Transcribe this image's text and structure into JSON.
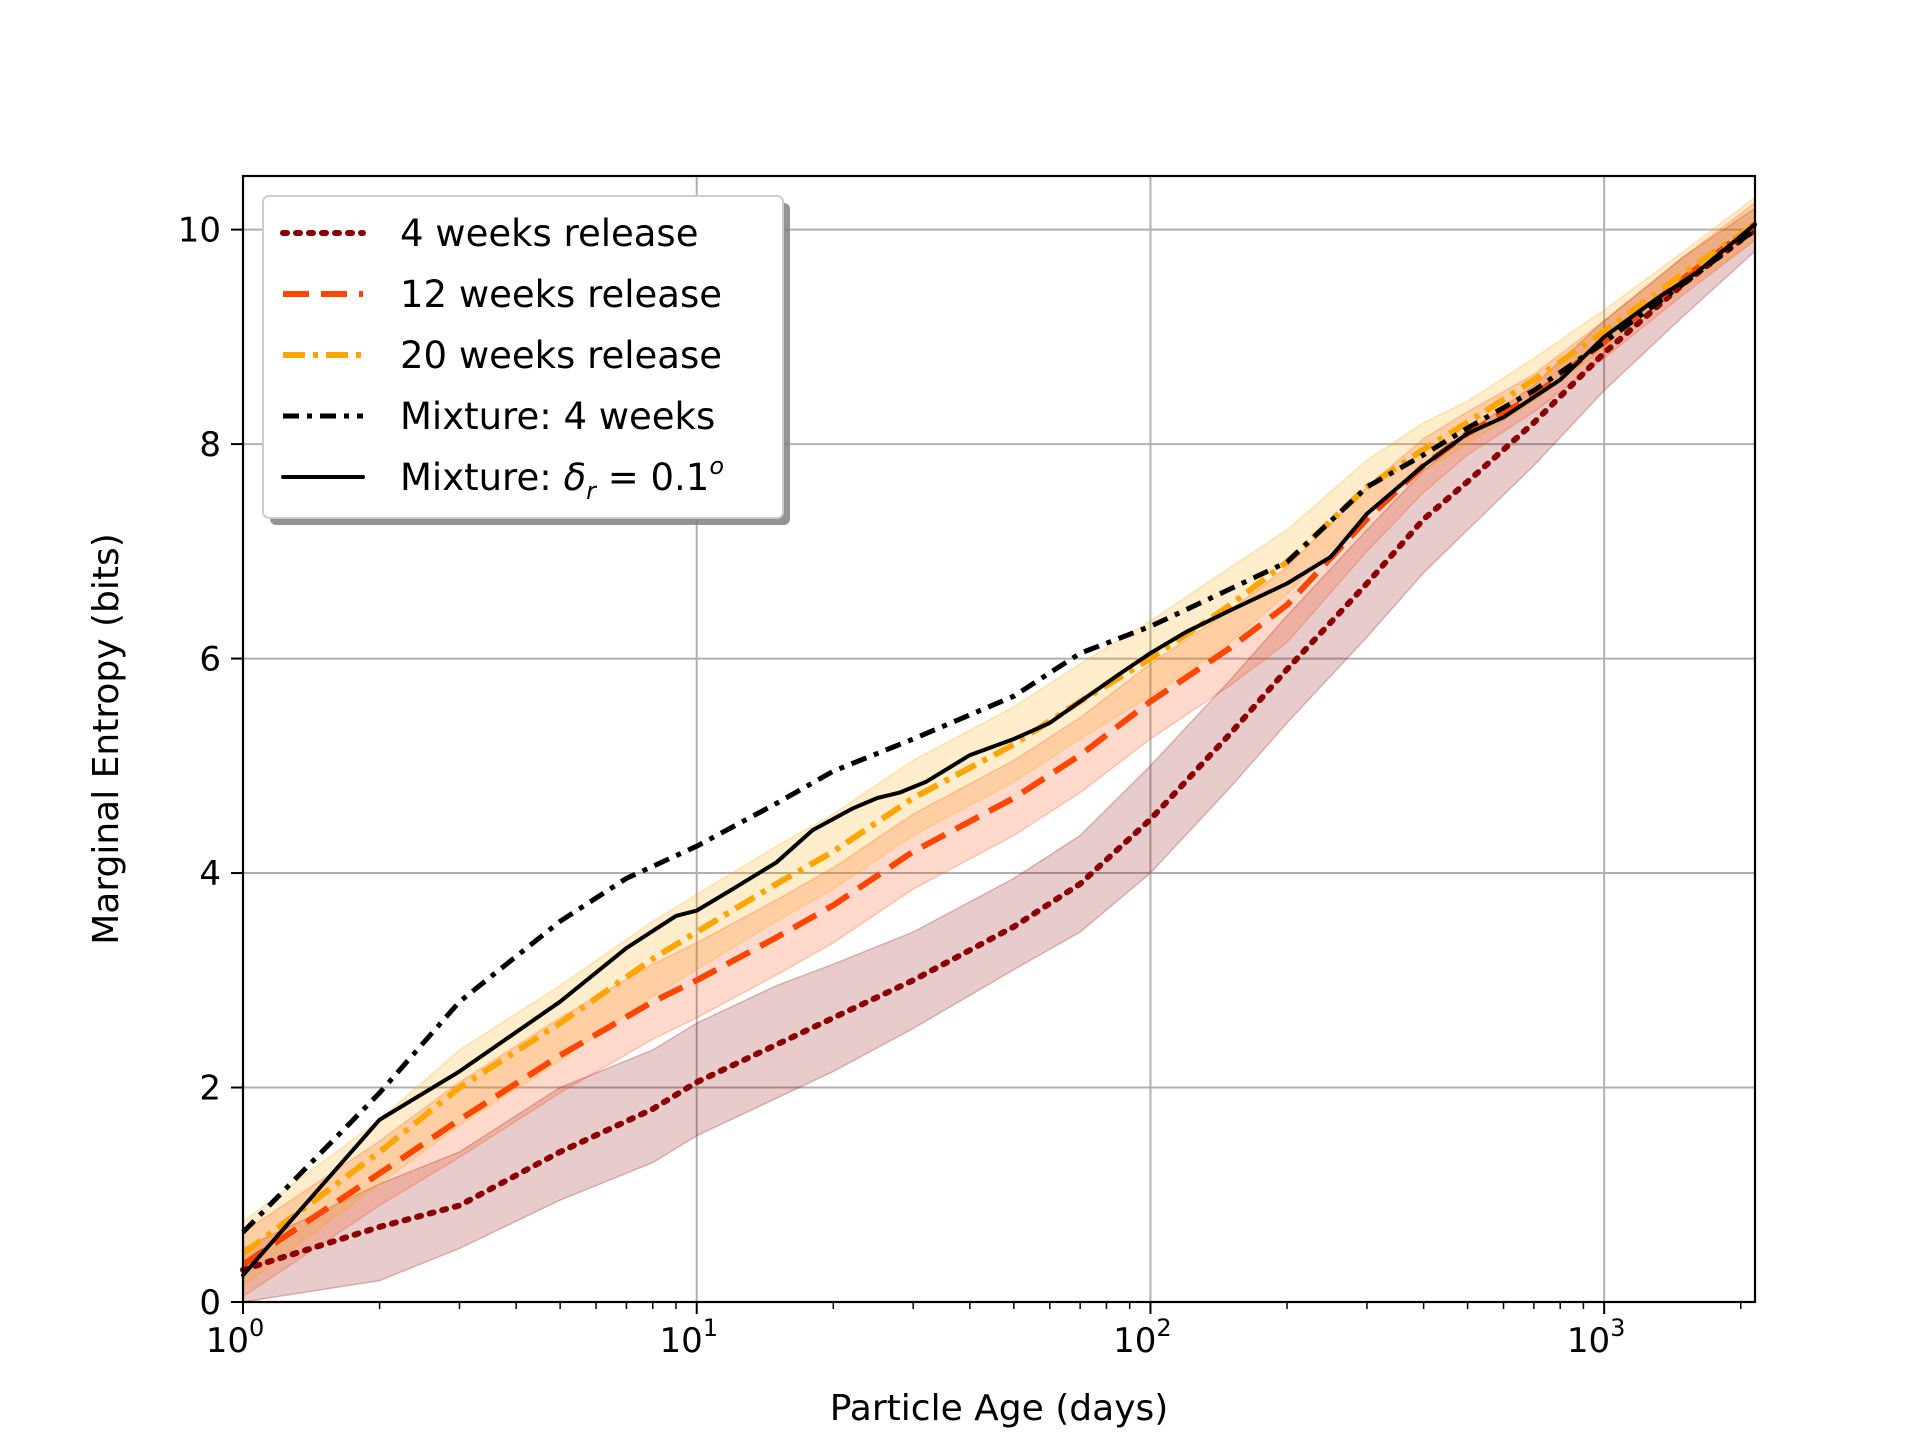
{
  "chart_data": {
    "type": "line",
    "title": "",
    "xlabel": "Particle Age (days)",
    "ylabel": "Marginal Entropy (bits)",
    "xscale": "log",
    "xlim": [
      1,
      2150
    ],
    "ylim": [
      0,
      10.5
    ],
    "grid": true,
    "legend_position": "top-left",
    "x_ticks": [
      {
        "value": 1,
        "base": "10",
        "exp": "0"
      },
      {
        "value": 10,
        "base": "10",
        "exp": "1"
      },
      {
        "value": 100,
        "base": "10",
        "exp": "2"
      },
      {
        "value": 1000,
        "base": "10",
        "exp": "3"
      }
    ],
    "y_ticks": [
      {
        "value": 0,
        "label": "0"
      },
      {
        "value": 2,
        "label": "2"
      },
      {
        "value": 4,
        "label": "4"
      },
      {
        "value": 6,
        "label": "6"
      },
      {
        "value": 8,
        "label": "8"
      },
      {
        "value": 10,
        "label": "10"
      }
    ],
    "series": [
      {
        "name": "4 weeks release",
        "color": "#8b0000",
        "dash": "dotted",
        "x": [
          1,
          2,
          3,
          5,
          8,
          10,
          15,
          20,
          30,
          50,
          70,
          100,
          150,
          200,
          300,
          400,
          500,
          700,
          1000,
          1500,
          2150
        ],
        "y": [
          0.3,
          0.7,
          0.9,
          1.4,
          1.8,
          2.05,
          2.4,
          2.65,
          3.0,
          3.5,
          3.9,
          4.5,
          5.3,
          5.9,
          6.7,
          7.3,
          7.65,
          8.2,
          8.85,
          9.5,
          10.0
        ],
        "band_low": [
          0.0,
          0.2,
          0.5,
          0.95,
          1.3,
          1.55,
          1.9,
          2.15,
          2.55,
          3.1,
          3.45,
          4.0,
          4.8,
          5.4,
          6.2,
          6.8,
          7.2,
          7.8,
          8.5,
          9.2,
          9.8
        ],
        "band_high": [
          0.5,
          1.1,
          1.4,
          2.0,
          2.35,
          2.6,
          2.95,
          3.15,
          3.45,
          3.95,
          4.35,
          5.0,
          5.8,
          6.4,
          7.2,
          7.75,
          8.1,
          8.55,
          9.15,
          9.75,
          10.2
        ]
      },
      {
        "name": "12 weeks release",
        "color": "#ff4500",
        "dash": "dashed",
        "x": [
          1,
          2,
          3,
          5,
          8,
          10,
          15,
          20,
          30,
          50,
          70,
          100,
          150,
          200,
          300,
          400,
          500,
          700,
          1000,
          1500,
          2150
        ],
        "y": [
          0.35,
          1.2,
          1.7,
          2.3,
          2.8,
          3.0,
          3.4,
          3.7,
          4.2,
          4.7,
          5.1,
          5.6,
          6.1,
          6.5,
          7.3,
          7.8,
          8.1,
          8.45,
          8.95,
          9.55,
          10.05
        ],
        "band_low": [
          0.05,
          0.9,
          1.35,
          1.95,
          2.45,
          2.65,
          3.05,
          3.35,
          3.85,
          4.35,
          4.75,
          5.25,
          5.75,
          6.15,
          7.0,
          7.55,
          7.9,
          8.3,
          8.8,
          9.4,
          9.9
        ],
        "band_high": [
          0.65,
          1.5,
          2.05,
          2.65,
          3.15,
          3.35,
          3.75,
          4.05,
          4.55,
          5.05,
          5.45,
          5.95,
          6.45,
          6.85,
          7.6,
          8.05,
          8.3,
          8.65,
          9.15,
          9.75,
          10.25
        ]
      },
      {
        "name": "20 weeks release",
        "color": "#ffa500",
        "dash": "dashdot",
        "x": [
          1,
          2,
          3,
          5,
          8,
          10,
          15,
          20,
          30,
          50,
          70,
          100,
          150,
          200,
          300,
          400,
          500,
          700,
          1000,
          1500,
          2150
        ],
        "y": [
          0.45,
          1.4,
          2.0,
          2.6,
          3.2,
          3.45,
          3.9,
          4.2,
          4.7,
          5.2,
          5.6,
          6.0,
          6.5,
          6.9,
          7.6,
          7.95,
          8.2,
          8.6,
          9.05,
          9.6,
          10.05
        ],
        "band_low": [
          0.15,
          1.1,
          1.65,
          2.25,
          2.85,
          3.1,
          3.55,
          3.85,
          4.35,
          4.85,
          5.25,
          5.65,
          6.15,
          6.6,
          7.35,
          7.75,
          8.0,
          8.4,
          8.9,
          9.45,
          9.9
        ],
        "band_high": [
          0.75,
          1.7,
          2.35,
          2.95,
          3.55,
          3.8,
          4.25,
          4.55,
          5.05,
          5.55,
          5.95,
          6.35,
          6.85,
          7.2,
          7.85,
          8.2,
          8.4,
          8.8,
          9.25,
          9.8,
          10.3
        ]
      },
      {
        "name": "Mixture: 4 weeks",
        "color": "#000000",
        "dash": "dashdot-black",
        "x": [
          1,
          2,
          3,
          5,
          7,
          10,
          15,
          20,
          30,
          50,
          70,
          100,
          150,
          200,
          300,
          400,
          500,
          700,
          1000,
          1500,
          2150
        ],
        "y": [
          0.65,
          1.95,
          2.8,
          3.55,
          3.95,
          4.25,
          4.65,
          4.95,
          5.25,
          5.65,
          6.05,
          6.3,
          6.65,
          6.9,
          7.6,
          7.9,
          8.15,
          8.5,
          8.95,
          9.5,
          10.0
        ]
      },
      {
        "name_prefix": "Mixture: ",
        "name_math": "δ",
        "name_sub": "r",
        "name_rest": " = 0.1",
        "name_sup": "o",
        "color": "#000000",
        "dash": "solid",
        "x": [
          1,
          2,
          3,
          5,
          7,
          9,
          10,
          12,
          15,
          18,
          22,
          25,
          28,
          32,
          40,
          50,
          60,
          70,
          85,
          100,
          120,
          150,
          200,
          250,
          300,
          400,
          500,
          600,
          800,
          1000,
          1300,
          1600,
          2150
        ],
        "y": [
          0.25,
          1.7,
          2.15,
          2.8,
          3.3,
          3.6,
          3.65,
          3.85,
          4.1,
          4.4,
          4.6,
          4.7,
          4.75,
          4.85,
          5.1,
          5.25,
          5.4,
          5.6,
          5.85,
          6.05,
          6.25,
          6.45,
          6.7,
          6.95,
          7.35,
          7.8,
          8.1,
          8.25,
          8.6,
          9.0,
          9.35,
          9.6,
          10.05
        ]
      }
    ]
  }
}
